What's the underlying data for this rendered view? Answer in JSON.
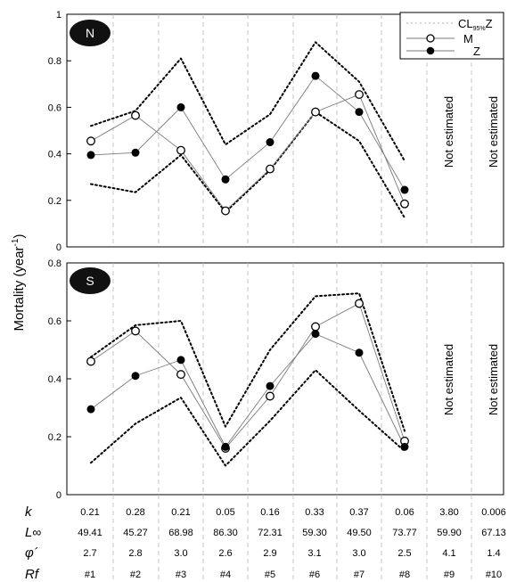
{
  "ylabel": "Mortality (year",
  "ylabel_sup": "-1",
  "legend": {
    "cl_label": "CL",
    "cl_sub": "95%",
    "cl_tail": "Z",
    "m_label": "M",
    "z_label": "Z"
  },
  "not_estimated": "Not estimated",
  "chart_data": [
    {
      "type": "line",
      "panel_label": "N",
      "ylim": [
        0,
        1
      ],
      "yticks": [
        "0",
        "0.2",
        "0.4",
        "0.6",
        "0.8",
        "1"
      ],
      "ytick_values": [
        0,
        0.2,
        0.4,
        0.6,
        0.8,
        1
      ],
      "categories": [
        "#1",
        "#2",
        "#3",
        "#4",
        "#5",
        "#6",
        "#7",
        "#8",
        "#9",
        "#10"
      ],
      "not_estimated_categories": [
        "#9",
        "#10"
      ],
      "series": [
        {
          "name": "M",
          "values": [
            0.455,
            0.565,
            0.415,
            0.155,
            0.335,
            0.58,
            0.655,
            0.185,
            null,
            null
          ]
        },
        {
          "name": "Z",
          "values": [
            0.395,
            0.405,
            0.6,
            0.29,
            0.45,
            0.735,
            0.58,
            0.245,
            null,
            null
          ]
        },
        {
          "name": "CL95%Z upper",
          "values": [
            0.52,
            0.585,
            0.81,
            0.44,
            0.57,
            0.88,
            0.71,
            0.37,
            null,
            null
          ]
        },
        {
          "name": "CL95%Z lower",
          "values": [
            0.27,
            0.235,
            0.395,
            0.15,
            0.33,
            0.58,
            0.455,
            0.125,
            null,
            null
          ]
        }
      ]
    },
    {
      "type": "line",
      "panel_label": "S",
      "ylim": [
        0,
        0.8
      ],
      "yticks": [
        "0",
        "0.2",
        "0.4",
        "0.6",
        "0.8"
      ],
      "ytick_values": [
        0,
        0.2,
        0.4,
        0.6,
        0.8
      ],
      "categories": [
        "#1",
        "#2",
        "#3",
        "#4",
        "#5",
        "#6",
        "#7",
        "#8",
        "#9",
        "#10"
      ],
      "not_estimated_categories": [
        "#9",
        "#10"
      ],
      "series": [
        {
          "name": "M",
          "values": [
            0.46,
            0.565,
            0.415,
            0.16,
            0.34,
            0.58,
            0.66,
            0.185,
            null,
            null
          ]
        },
        {
          "name": "Z",
          "values": [
            0.295,
            0.41,
            0.465,
            0.165,
            0.375,
            0.555,
            0.49,
            0.165,
            null,
            null
          ]
        },
        {
          "name": "CL95%Z upper",
          "values": [
            0.475,
            0.585,
            0.6,
            0.235,
            0.5,
            0.685,
            0.695,
            0.22,
            null,
            null
          ]
        },
        {
          "name": "CL95%Z lower",
          "values": [
            0.11,
            0.245,
            0.335,
            0.1,
            0.255,
            0.43,
            0.29,
            0.15,
            null,
            null
          ]
        }
      ]
    }
  ],
  "parameter_table": {
    "row_labels": [
      {
        "main": "k",
        "sub": ""
      },
      {
        "main": "L",
        "sub": "∞"
      },
      {
        "main": "φ´",
        "sub": ""
      },
      {
        "main": "Rf",
        "sub": ""
      }
    ],
    "rows": [
      [
        "0.21",
        "0.28",
        "0.21",
        "0.05",
        "0.16",
        "0.33",
        "0.37",
        "0.06",
        "3.80",
        "0.006"
      ],
      [
        "49.41",
        "45.27",
        "68.98",
        "86.30",
        "72.31",
        "59.30",
        "49.50",
        "73.77",
        "59.90",
        "67.13"
      ],
      [
        "2.7",
        "2.8",
        "3.0",
        "2.6",
        "2.9",
        "3.1",
        "3.0",
        "2.5",
        "4.1",
        "1.4"
      ],
      [
        "#1",
        "#2",
        "#3",
        "#4",
        "#5",
        "#6",
        "#7",
        "#8",
        "#9",
        "#10"
      ]
    ]
  }
}
